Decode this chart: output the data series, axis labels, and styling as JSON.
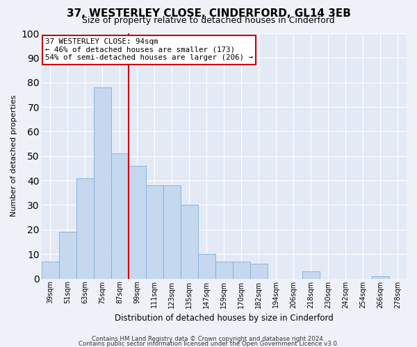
{
  "title": "37, WESTERLEY CLOSE, CINDERFORD, GL14 3EB",
  "subtitle": "Size of property relative to detached houses in Cinderford",
  "xlabel": "Distribution of detached houses by size in Cinderford",
  "ylabel": "Number of detached properties",
  "bar_labels": [
    "39sqm",
    "51sqm",
    "63sqm",
    "75sqm",
    "87sqm",
    "99sqm",
    "111sqm",
    "123sqm",
    "135sqm",
    "147sqm",
    "159sqm",
    "170sqm",
    "182sqm",
    "194sqm",
    "206sqm",
    "218sqm",
    "230sqm",
    "242sqm",
    "254sqm",
    "266sqm",
    "278sqm"
  ],
  "bar_heights": [
    7,
    19,
    41,
    78,
    51,
    46,
    38,
    38,
    30,
    10,
    7,
    7,
    6,
    0,
    0,
    3,
    0,
    0,
    0,
    1,
    0
  ],
  "bar_color": "#c5d8f0",
  "bar_edge_color": "#7bafd4",
  "ylim": [
    0,
    100
  ],
  "yticks": [
    0,
    10,
    20,
    30,
    40,
    50,
    60,
    70,
    80,
    90,
    100
  ],
  "vline_x": 4.5,
  "vline_color": "#cc0000",
  "annotation_title": "37 WESTERLEY CLOSE: 94sqm",
  "annotation_line1": "← 46% of detached houses are smaller (173)",
  "annotation_line2": "54% of semi-detached houses are larger (206) →",
  "annotation_box_color": "#ffffff",
  "annotation_box_edge": "#cc0000",
  "bg_color": "#eef2f8",
  "plot_bg_color": "#e4eaf5",
  "grid_color": "#ffffff",
  "footnote1": "Contains HM Land Registry data © Crown copyright and database right 2024.",
  "footnote2": "Contains public sector information licensed under the Open Government Licence v3.0."
}
